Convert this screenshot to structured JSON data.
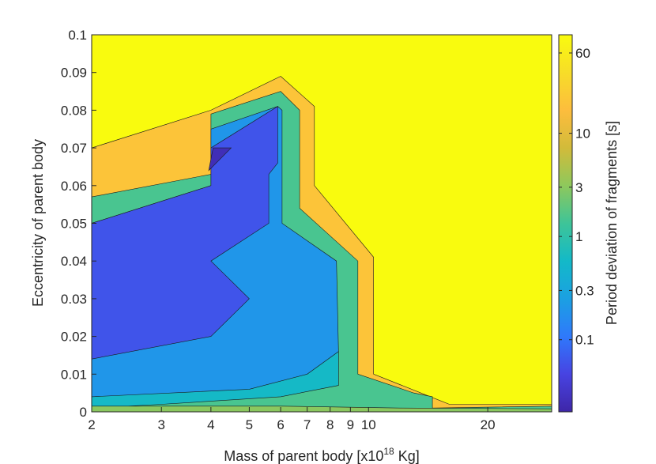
{
  "chart_data": {
    "type": "contour",
    "xlabel": "Mass of parent body [x10",
    "xlabel_sup": "18",
    "xlabel_tail": " Kg]",
    "ylabel": "Eccentricity of parent body",
    "colorbar_label": "Period deviation of fragments [s]",
    "x_scale": "log",
    "xlim": [
      2,
      29
    ],
    "ylim": [
      0,
      0.1
    ],
    "x_ticks": [
      2,
      3,
      4,
      5,
      6,
      7,
      8,
      9,
      10,
      20
    ],
    "y_ticks": [
      0,
      0.01,
      0.02,
      0.03,
      0.04,
      0.05,
      0.06,
      0.07,
      0.08,
      0.09,
      0.1
    ],
    "colorbar_scale": "log",
    "colorbar_range": [
      0.02,
      90
    ],
    "colorbar_ticks": [
      0.1,
      0.3,
      1,
      3,
      10,
      60
    ],
    "colormap": [
      "#3e26a8",
      "#4743e2",
      "#2f79fb",
      "#1ba0e2",
      "#13b9c8",
      "#3ec498",
      "#8ec85c",
      "#d2bb3a",
      "#fdbd3d",
      "#f7dd28",
      "#f9fb0e"
    ],
    "regions": [
      {
        "level": 90,
        "polygon": [
          [
            2,
            0
          ],
          [
            29,
            0
          ],
          [
            29,
            0.1
          ],
          [
            2,
            0.1
          ]
        ]
      },
      {
        "level": 20,
        "polygon": [
          [
            2,
            0.06
          ],
          [
            2,
            0.07
          ],
          [
            4,
            0.08
          ],
          [
            6,
            0.089
          ],
          [
            7.3,
            0.081
          ],
          [
            7.3,
            0.06
          ],
          [
            10.3,
            0.041
          ],
          [
            10.3,
            0.01
          ],
          [
            16,
            0.002
          ],
          [
            29,
            0.002
          ],
          [
            29,
            0
          ],
          [
            2,
            0
          ]
        ]
      },
      {
        "level": 1.5,
        "polygon": [
          [
            2,
            0.057
          ],
          [
            4,
            0.063
          ],
          [
            4,
            0.079
          ],
          [
            6,
            0.085
          ],
          [
            6.7,
            0.08
          ],
          [
            6.7,
            0.054
          ],
          [
            9.4,
            0.04
          ],
          [
            9.4,
            0.01
          ],
          [
            13,
            0.005
          ],
          [
            14.5,
            0.004
          ],
          [
            14.5,
            0.001
          ],
          [
            29,
            0.0015
          ],
          [
            29,
            0
          ],
          [
            2,
            0
          ]
        ]
      },
      {
        "level": 0.2,
        "polygon": [
          [
            2,
            0.05
          ],
          [
            4,
            0.06
          ],
          [
            4,
            0.075
          ],
          [
            5.9,
            0.081
          ],
          [
            6.05,
            0.08
          ],
          [
            6.05,
            0.05
          ],
          [
            8.3,
            0.04
          ],
          [
            8.4,
            0.016
          ],
          [
            7.5,
            0.008
          ],
          [
            5,
            0.005
          ],
          [
            2,
            0.004
          ],
          [
            2,
            0
          ]
        ]
      },
      {
        "level": 0.06,
        "polygon": [
          [
            2,
            0.05
          ],
          [
            4,
            0.06
          ],
          [
            4,
            0.07
          ],
          [
            5.9,
            0.081
          ],
          [
            5.9,
            0.066
          ],
          [
            5.6,
            0.063
          ],
          [
            5.6,
            0.05
          ],
          [
            4,
            0.04
          ],
          [
            5,
            0.03
          ],
          [
            4,
            0.02
          ],
          [
            2,
            0.014
          ]
        ]
      },
      {
        "level": 0.025,
        "polygon": [
          [
            3.95,
            0.064
          ],
          [
            4.05,
            0.07
          ],
          [
            4.5,
            0.07
          ]
        ]
      },
      {
        "level": 0.6,
        "polygon": [
          [
            2,
            0.004
          ],
          [
            5,
            0.006
          ],
          [
            7,
            0.01
          ],
          [
            8.4,
            0.016
          ],
          [
            8.4,
            0.007
          ],
          [
            6,
            0.004
          ],
          [
            3,
            0.002
          ],
          [
            2,
            0.001
          ]
        ]
      },
      {
        "level": 3,
        "polygon": [
          [
            2,
            0
          ],
          [
            29,
            0
          ],
          [
            29,
            0.0008
          ],
          [
            12,
            0.001
          ],
          [
            6,
            0.0015
          ],
          [
            2,
            0.0015
          ]
        ]
      }
    ]
  }
}
